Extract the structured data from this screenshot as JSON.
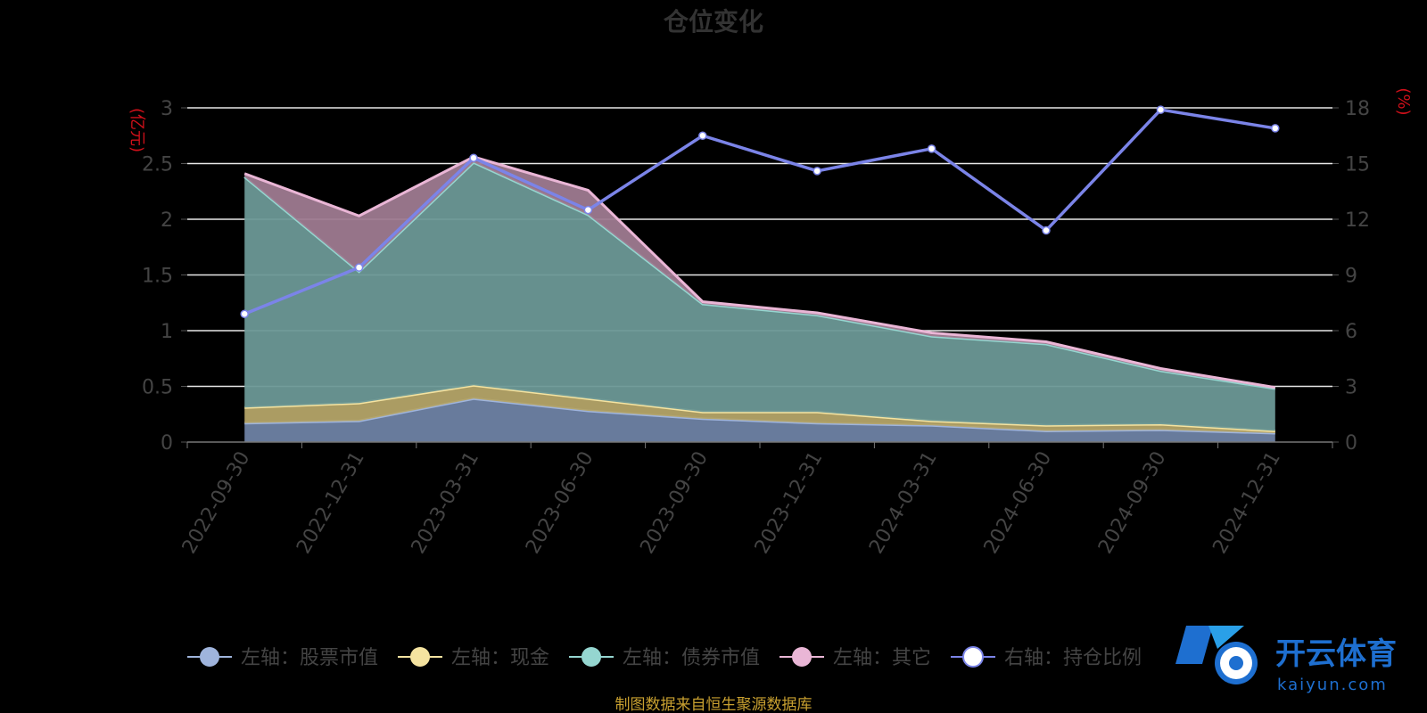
{
  "chart_data": {
    "type": "area",
    "title": "仓位变化",
    "left_unit": "(亿元)",
    "right_unit": "(%)",
    "categories": [
      "2022-09-30",
      "2022-12-31",
      "2023-03-31",
      "2023-06-30",
      "2023-09-30",
      "2023-12-31",
      "2024-03-31",
      "2024-06-30",
      "2024-09-30",
      "2024-12-31"
    ],
    "left_ylim": [
      0,
      3
    ],
    "left_ticks": [
      "0",
      "0.5",
      "1",
      "1.5",
      "2",
      "2.5",
      "3"
    ],
    "right_ylim": [
      0,
      18
    ],
    "right_ticks": [
      "0",
      "3",
      "6",
      "9",
      "12",
      "15",
      "18"
    ],
    "grid": true,
    "legend_position": "bottom",
    "series": [
      {
        "name": "左轴：股票市值",
        "axis": "left",
        "stacked": true,
        "color": "#9fb4dc",
        "fill": "#6e82a4",
        "values": [
          0.17,
          0.19,
          0.39,
          0.28,
          0.21,
          0.17,
          0.15,
          0.1,
          0.11,
          0.08
        ]
      },
      {
        "name": "左轴：现金",
        "axis": "left",
        "stacked": true,
        "color": "#f5e3a0",
        "fill": "#b4a468",
        "values": [
          0.14,
          0.16,
          0.12,
          0.11,
          0.06,
          0.1,
          0.04,
          0.05,
          0.05,
          0.02
        ]
      },
      {
        "name": "左轴：债券市值",
        "axis": "left",
        "stacked": true,
        "color": "#95d6d0",
        "fill": "#6b9896",
        "values": [
          2.07,
          1.18,
          2.0,
          1.65,
          0.97,
          0.87,
          0.76,
          0.73,
          0.48,
          0.38
        ]
      },
      {
        "name": "左轴：其它",
        "axis": "left",
        "stacked": true,
        "color": "#eab6d6",
        "fill": "#9e7a90",
        "values": [
          0.03,
          0.5,
          0.05,
          0.22,
          0.02,
          0.02,
          0.03,
          0.02,
          0.02,
          0.01
        ]
      },
      {
        "name": "右轴：持仓比例",
        "axis": "right",
        "stacked": false,
        "color": "#7b84e8",
        "values": [
          6.9,
          9.4,
          15.3,
          12.5,
          16.5,
          14.6,
          15.8,
          11.4,
          17.9,
          16.9
        ]
      }
    ],
    "source_note": "制图数据来自恒生聚源数据库"
  },
  "watermark": {
    "brand": "开云体育",
    "domain": "kaiyun.com"
  }
}
